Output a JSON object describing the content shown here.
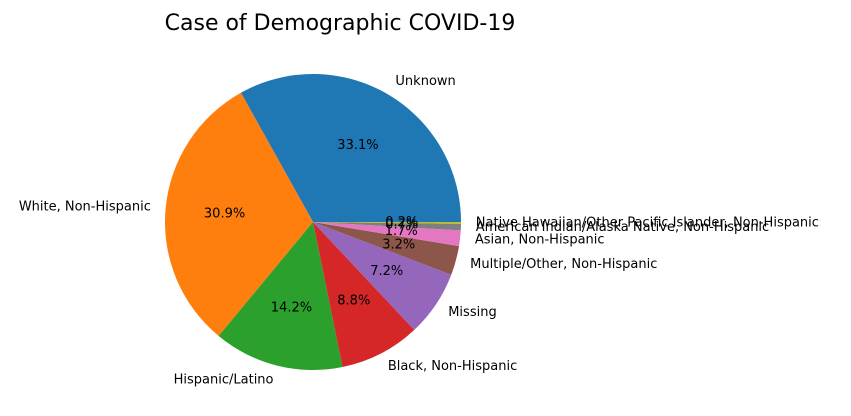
{
  "chart_data": {
    "type": "pie",
    "title": "Case of Demographic COVID-19",
    "categories": [
      "Unknown",
      "White, Non-Hispanic",
      "Hispanic/Latino",
      "Black, Non-Hispanic",
      "Missing",
      "Multiple/Other, Non-Hispanic",
      "Asian, Non-Hispanic",
      "American Indian/Alaska Native, Non-Hispanic",
      "Native Hawaiian/Other Pacific Islander, Non-Hispanic"
    ],
    "values": [
      33.1,
      30.9,
      14.2,
      8.8,
      7.2,
      3.2,
      1.7,
      0.7,
      0.2
    ],
    "value_labels": [
      "33.1%",
      "30.9%",
      "14.2%",
      "8.8%",
      "7.2%",
      "3.2%",
      "1.7%",
      "0.7%",
      "0.2%"
    ],
    "colors": [
      "#1f77b4",
      "#ff7f0e",
      "#2ca02c",
      "#d62728",
      "#9467bd",
      "#8c564b",
      "#e377c2",
      "#7f7f7f",
      "#bcbd22"
    ],
    "start_angle": 0,
    "direction": "counterclockwise",
    "legend": "none"
  }
}
